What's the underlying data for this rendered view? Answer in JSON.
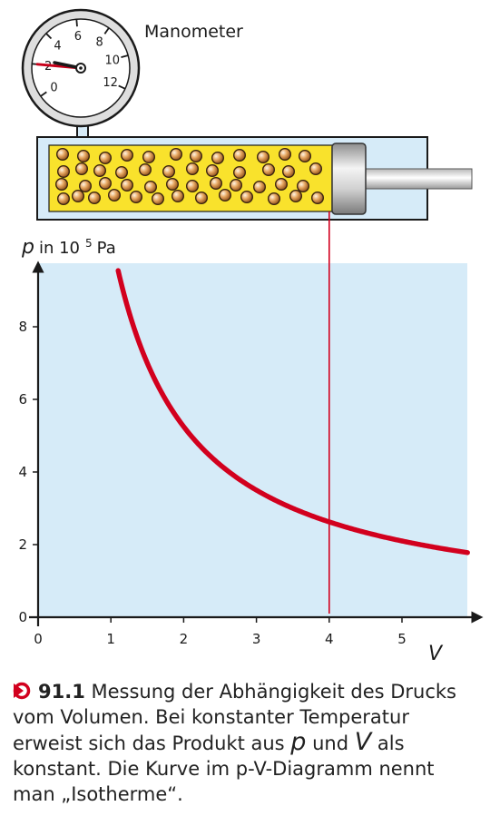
{
  "gauge": {
    "label": "Manometer",
    "ticks": [
      "0",
      "2",
      "4",
      "6",
      "8",
      "10",
      "12"
    ],
    "needle_value": 2
  },
  "colors": {
    "curve": "#d2001e",
    "plot_bg": "#d6ebf8",
    "gas": "#f9e22c",
    "molecule": "#e0a15a",
    "vertical_line": "#d2001e"
  },
  "chart_data": {
    "type": "line",
    "title": "",
    "ylabel_symbol": "p",
    "ylabel_unit": "in 10 5 Pa",
    "ylabel_unit_base": "in 10",
    "ylabel_unit_exp": "5",
    "ylabel_unit_tail": "Pa",
    "xlabel": "V",
    "x_ticks": [
      "0",
      "1",
      "2",
      "3",
      "4",
      "5"
    ],
    "y_ticks": [
      "0",
      "2",
      "4",
      "6",
      "8"
    ],
    "xlim": [
      0,
      5.9
    ],
    "ylim": [
      0,
      9.8
    ],
    "grid": false,
    "series": [
      {
        "relation": "p·V = const",
        "constant": 10.5,
        "x": [
          1.1,
          1.2,
          1.4,
          1.6,
          1.8,
          2.0,
          2.25,
          2.5,
          2.75,
          3.0,
          3.5,
          4.0,
          4.5,
          5.0,
          5.5,
          5.9
        ],
        "y": [
          9.55,
          8.75,
          7.5,
          6.56,
          5.83,
          5.25,
          4.67,
          4.2,
          3.82,
          3.5,
          3.0,
          2.62,
          2.33,
          2.1,
          1.91,
          1.78
        ]
      }
    ],
    "marked_x": 4,
    "marked_y": 2.62
  },
  "caption": {
    "number": "91.1",
    "text_1": " Messung der Abhängigkeit des Drucks vom Volumen. Bei konstanter Temperatur erweist sich das Produkt aus ",
    "sym_p": "p",
    "text_2": " und ",
    "sym_v": "V",
    "text_3": " als konstant. Die Kurve im p-V-Diagramm nennt man „Isotherme“."
  }
}
